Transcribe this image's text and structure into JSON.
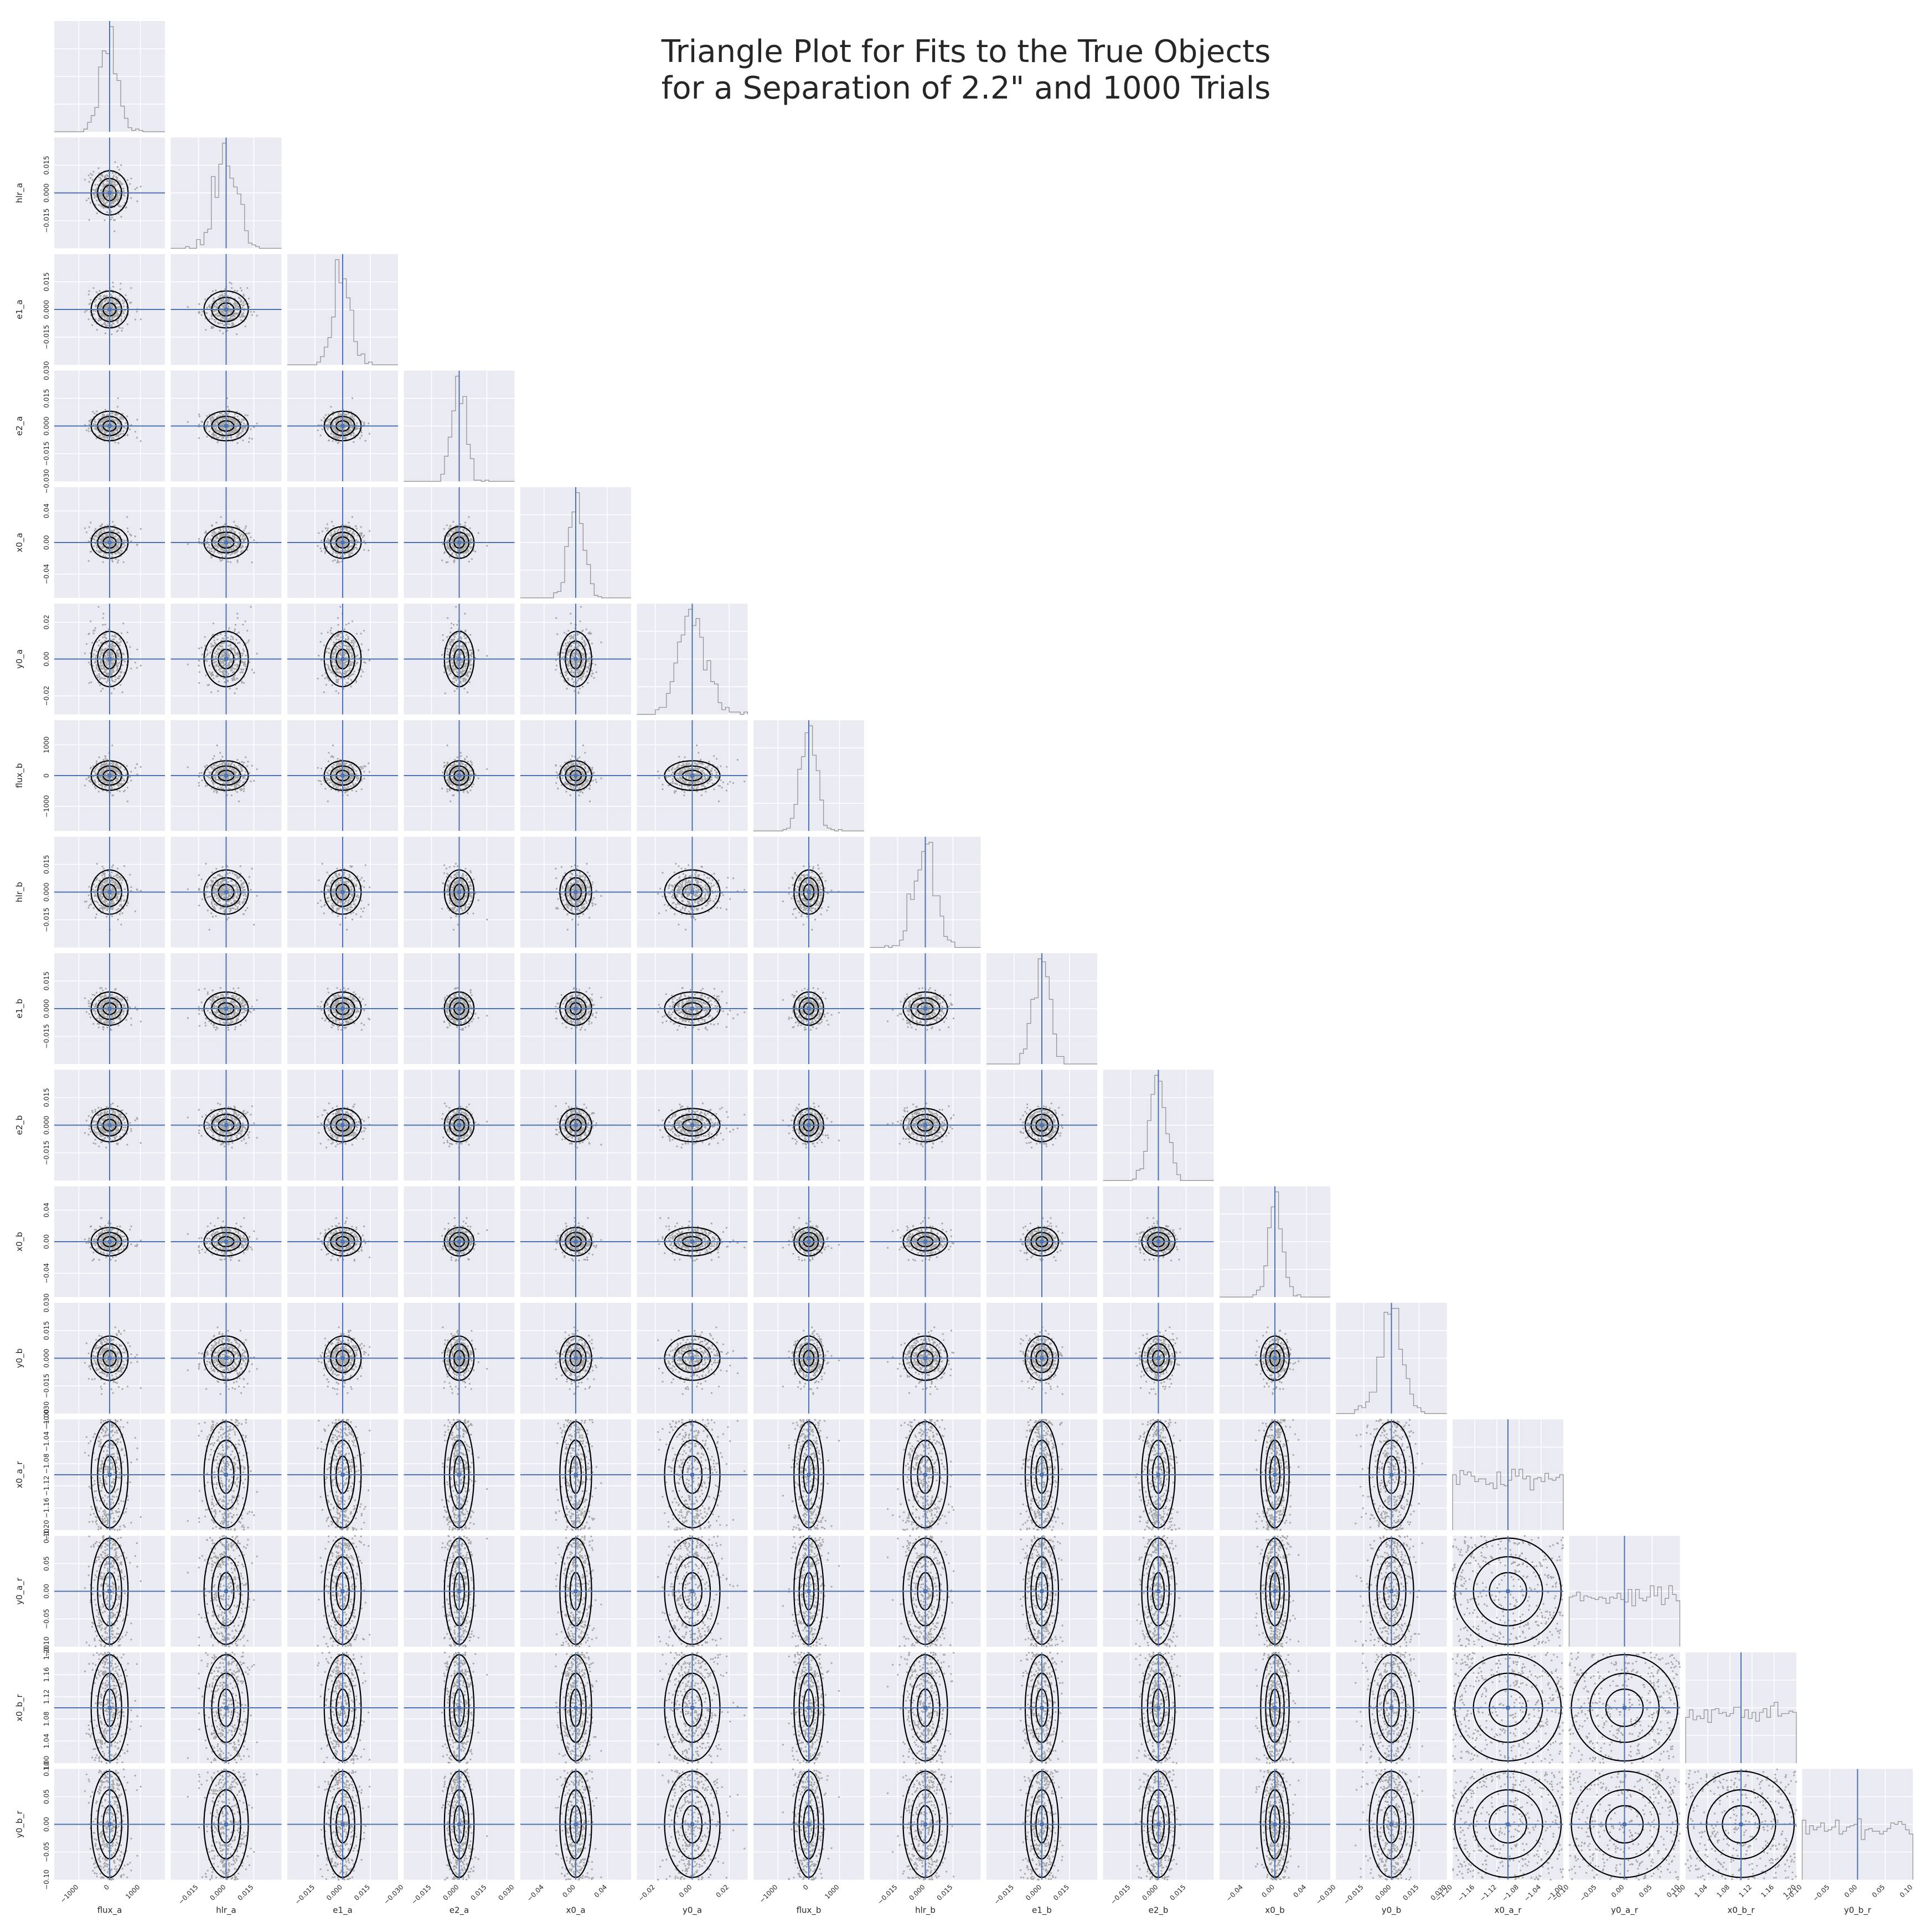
{
  "chart_data": {
    "type": "scatter",
    "subtype": "corner-triangle-plot",
    "title_lines": [
      "Triangle Plot for Fits to the True Objects",
      "for a Separation of 2.2\" and 1000 Trials"
    ],
    "n_trials": 1000,
    "separation_arcsec": 2.2,
    "grid": true,
    "colors": {
      "panel_bg": "#eaeaf2",
      "grid": "#ffffff",
      "truth_line": "#4c72b0",
      "histogram": "#8c8c8c",
      "contour": "#000000",
      "points": "#a8a8a8",
      "text": "#262626"
    },
    "parameters": [
      {
        "name": "flux_a",
        "truth": 0,
        "range": [
          -1800,
          1800
        ],
        "ticks": [
          -1000,
          0,
          1000
        ],
        "sigma": 300,
        "dist": "normal"
      },
      {
        "name": "hlr_a",
        "truth": 0,
        "range": [
          -0.03,
          0.03
        ],
        "ticks": [
          -0.015,
          0.0,
          0.015
        ],
        "sigma": 0.006,
        "dist": "normal"
      },
      {
        "name": "e1_a",
        "truth": 0,
        "range": [
          -0.03,
          0.03
        ],
        "ticks": [
          -0.015,
          0.0,
          0.015
        ],
        "sigma": 0.005,
        "dist": "normal"
      },
      {
        "name": "e2_a",
        "truth": 0,
        "range": [
          -0.03,
          0.03
        ],
        "ticks": [
          -0.03,
          -0.015,
          0.0,
          0.015,
          0.03
        ],
        "sigma": 0.004,
        "dist": "normal"
      },
      {
        "name": "x0_a",
        "truth": 0,
        "range": [
          -0.07,
          0.07
        ],
        "ticks": [
          -0.04,
          0.0,
          0.04
        ],
        "sigma": 0.01,
        "dist": "normal"
      },
      {
        "name": "y0_a",
        "truth": 0,
        "range": [
          -0.03,
          0.03
        ],
        "ticks": [
          -0.02,
          0.0,
          0.02
        ],
        "sigma": 0.0075,
        "dist": "normal"
      },
      {
        "name": "flux_b",
        "truth": 0,
        "range": [
          -1800,
          1800
        ],
        "ticks": [
          -1000,
          0,
          1000
        ],
        "sigma": 240,
        "dist": "normal"
      },
      {
        "name": "hlr_b",
        "truth": 0,
        "range": [
          -0.03,
          0.03
        ],
        "ticks": [
          -0.015,
          0.0,
          0.015
        ],
        "sigma": 0.006,
        "dist": "normal"
      },
      {
        "name": "e1_b",
        "truth": 0,
        "range": [
          -0.03,
          0.03
        ],
        "ticks": [
          -0.015,
          0.0,
          0.015
        ],
        "sigma": 0.0045,
        "dist": "normal"
      },
      {
        "name": "e2_b",
        "truth": 0,
        "range": [
          -0.03,
          0.03
        ],
        "ticks": [
          -0.015,
          0.0,
          0.015
        ],
        "sigma": 0.0045,
        "dist": "normal"
      },
      {
        "name": "x0_b",
        "truth": 0,
        "range": [
          -0.07,
          0.07
        ],
        "ticks": [
          -0.04,
          0.0,
          0.04
        ],
        "sigma": 0.009,
        "dist": "normal"
      },
      {
        "name": "y0_b",
        "truth": 0,
        "range": [
          -0.03,
          0.03
        ],
        "ticks": [
          -0.03,
          -0.015,
          0.0,
          0.015,
          0.03
        ],
        "sigma": 0.006,
        "dist": "normal"
      },
      {
        "name": "x0_a_r",
        "truth": -1.1,
        "range": [
          -1.2,
          -1.0
        ],
        "ticks": [
          -1.2,
          -1.16,
          -1.12,
          -1.08,
          -1.04,
          -1.0
        ],
        "dist": "uniform"
      },
      {
        "name": "y0_a_r",
        "truth": 0,
        "range": [
          -0.1,
          0.1
        ],
        "ticks": [
          -0.1,
          -0.05,
          0.0,
          0.05,
          0.1
        ],
        "dist": "uniform"
      },
      {
        "name": "x0_b_r",
        "truth": 1.1,
        "range": [
          1.0,
          1.2
        ],
        "ticks": [
          1.0,
          1.04,
          1.08,
          1.12,
          1.16,
          1.2
        ],
        "dist": "uniform"
      },
      {
        "name": "y0_b_r",
        "truth": 0,
        "range": [
          -0.1,
          0.1
        ],
        "ticks": [
          -0.1,
          -0.05,
          0.0,
          0.05,
          0.1
        ],
        "dist": "uniform"
      }
    ]
  }
}
